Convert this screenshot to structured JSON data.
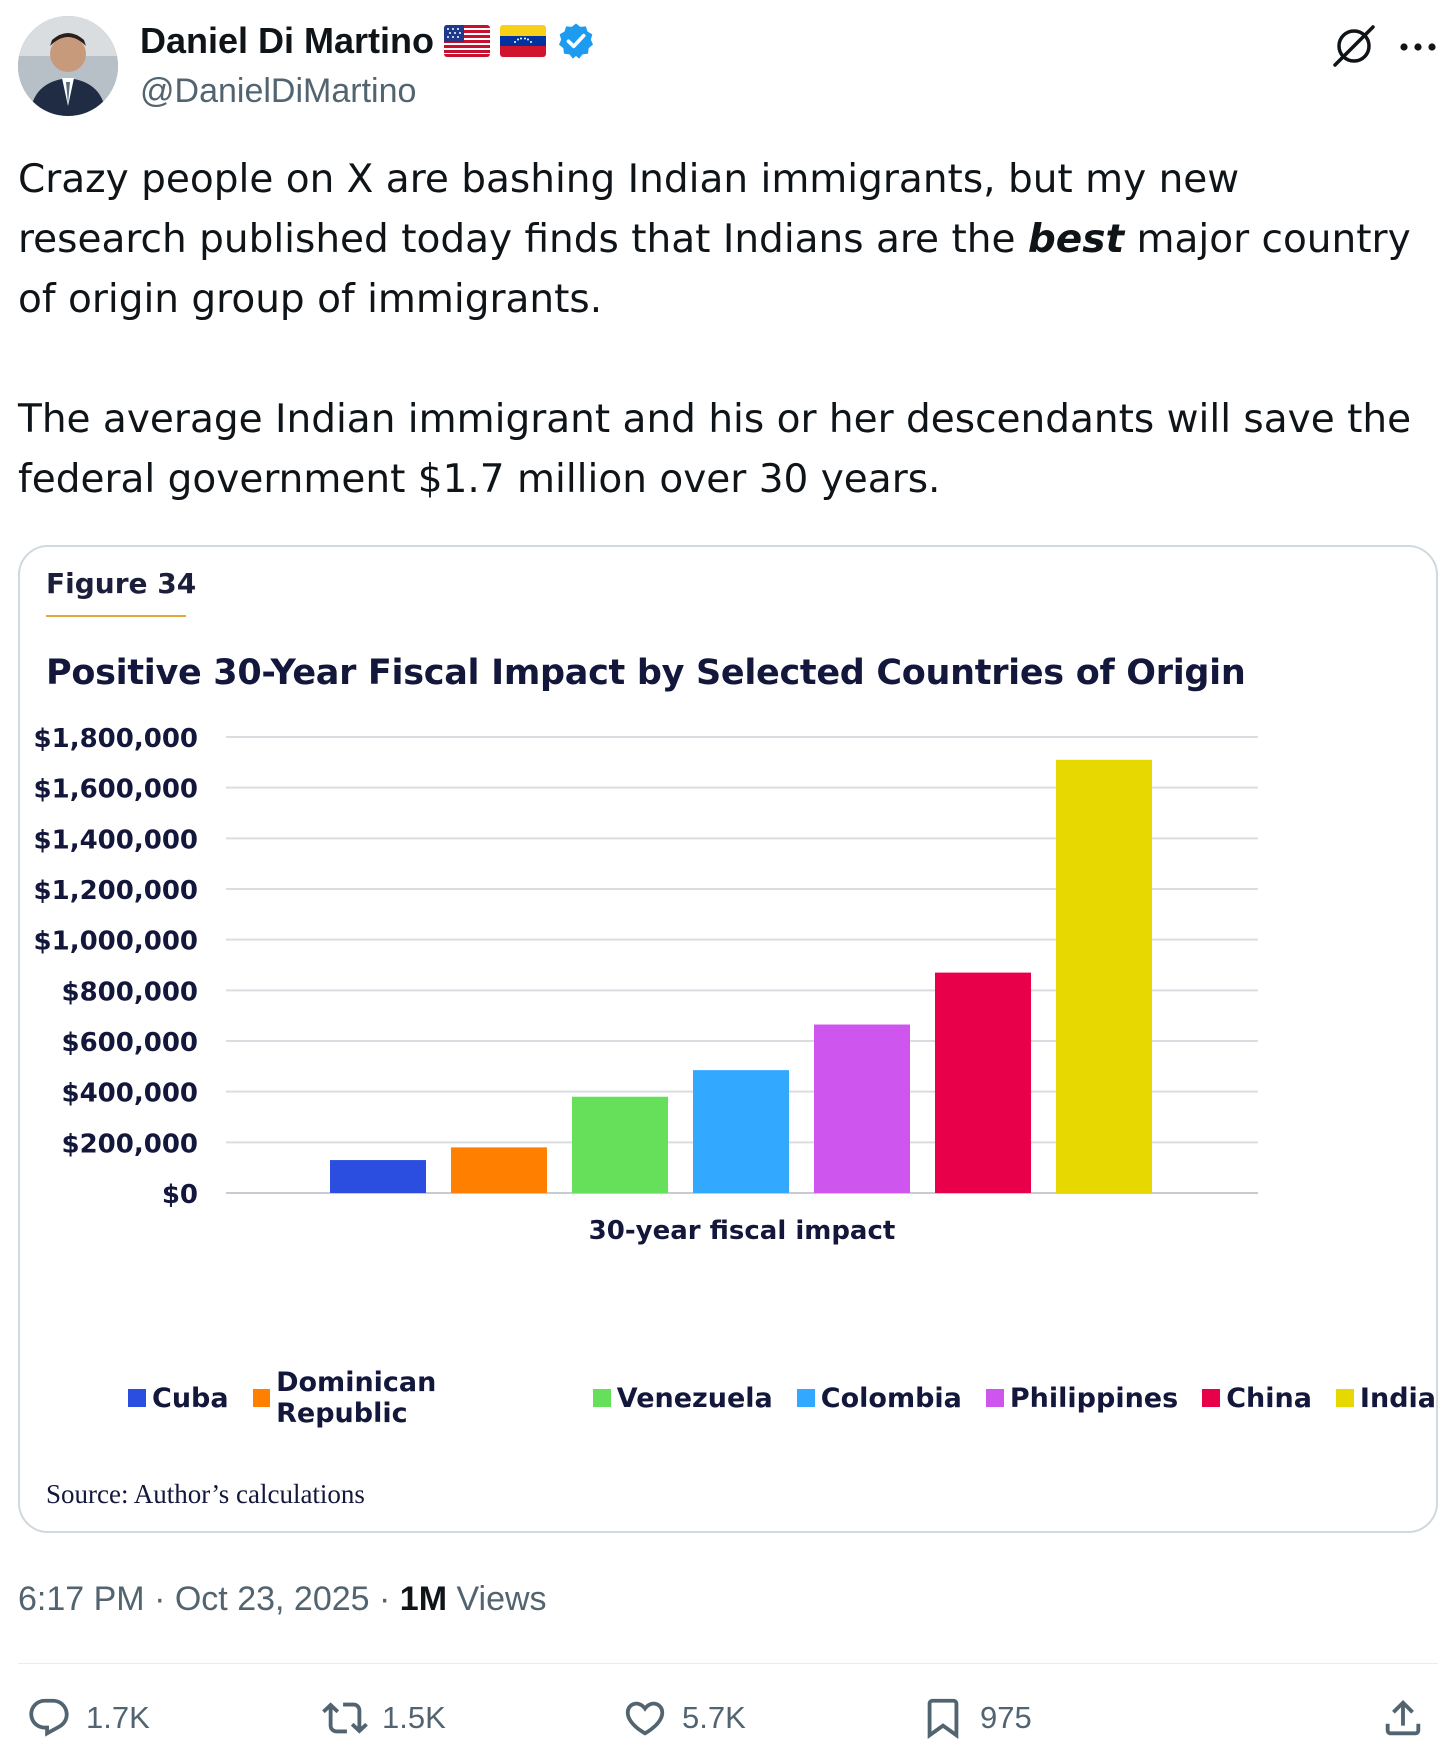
{
  "author": {
    "name": "Daniel Di Martino",
    "handle": "@DanielDiMartino",
    "flags": [
      "us-flag-icon",
      "venezuela-flag-icon"
    ],
    "verified": true
  },
  "tweet": {
    "text_1a": "Crazy people on X are bashing Indian immigrants, but my new research published today finds that Indians are the ",
    "text_1b": "best",
    "text_1c": " major country of origin group of immigrants.",
    "text_2": "The average Indian immigrant and his or her descendants will save the federal government $1.7 million over 30 years."
  },
  "card": {
    "figure_label": "Figure 34",
    "source": "Source: Author’s calculations"
  },
  "chart_data": {
    "type": "bar",
    "title": "Positive 30-Year Fiscal Impact by Selected Countries of Origin",
    "xlabel": "30-year fiscal impact",
    "ylabel": "",
    "ylim": [
      0,
      1800000
    ],
    "yticks": [
      {
        "value": 0,
        "label": "$0"
      },
      {
        "value": 200000,
        "label": "$200,000"
      },
      {
        "value": 400000,
        "label": "$400,000"
      },
      {
        "value": 600000,
        "label": "$600,000"
      },
      {
        "value": 800000,
        "label": "$800,000"
      },
      {
        "value": 1000000,
        "label": "$1,000,000"
      },
      {
        "value": 1200000,
        "label": "$1,200,000"
      },
      {
        "value": 1400000,
        "label": "$1,400,000"
      },
      {
        "value": 1600000,
        "label": "$1,600,000"
      },
      {
        "value": 1800000,
        "label": "$1,800,000"
      }
    ],
    "grid": true,
    "legend_position": "bottom",
    "series": [
      {
        "name": "Cuba",
        "value": 130000,
        "color": "#2b4de0"
      },
      {
        "name": "Dominican Republic",
        "value": 180000,
        "color": "#ff8000"
      },
      {
        "name": "Venezuela",
        "value": 380000,
        "color": "#66e05a"
      },
      {
        "name": "Colombia",
        "value": 485000,
        "color": "#33a8ff"
      },
      {
        "name": "Philippines",
        "value": 665000,
        "color": "#cf55ef"
      },
      {
        "name": "China",
        "value": 870000,
        "color": "#e8004a"
      },
      {
        "name": "India",
        "value": 1710000,
        "color": "#e6d800"
      }
    ]
  },
  "meta": {
    "time": "6:17 PM",
    "date": "Oct 23, 2025",
    "views_num": "1M",
    "views_label": "Views",
    "sep": "·"
  },
  "actions": {
    "replies": "1.7K",
    "reposts": "1.5K",
    "likes": "5.7K",
    "bookmarks": "975"
  },
  "colors": {
    "accent": "#1d9bf0",
    "text_secondary": "#536471",
    "chart_title": "#14173c",
    "figure_rule": "#e2a83b"
  }
}
